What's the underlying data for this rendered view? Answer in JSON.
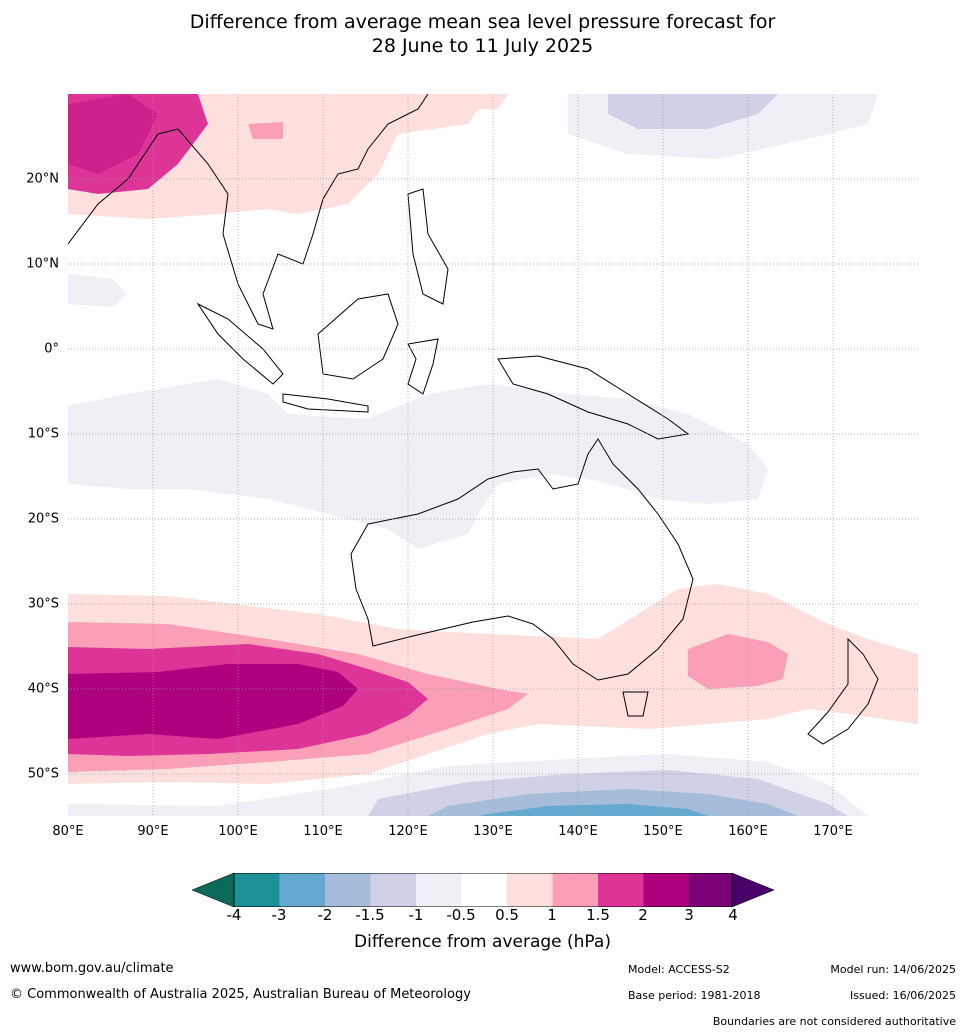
{
  "title_line1": "Difference from average mean sea level pressure forecast for",
  "title_line2": "28 June to 11 July 2025",
  "lat_labels": [
    "20°N",
    "10°N",
    "0°",
    "10°S",
    "20°S",
    "30°S",
    "40°S",
    "50°S"
  ],
  "lon_labels": [
    "80°E",
    "90°E",
    "100°E",
    "110°E",
    "120°E",
    "130°E",
    "140°E",
    "150°E",
    "160°E",
    "170°E"
  ],
  "colorbar": {
    "colors": [
      "#0b6a5a",
      "#1d9198",
      "#64a9d0",
      "#a6bcdb",
      "#d0d1e6",
      "#f1eef6",
      "#ffffff",
      "#fde0dd",
      "#fa9fb5",
      "#dd3497",
      "#ae017e",
      "#7a0177",
      "#49006a"
    ],
    "ticks": [
      "-4",
      "-3",
      "-2",
      "-1.5",
      "-1",
      "-0.5",
      "0.5",
      "1",
      "1.5",
      "2",
      "3",
      "4"
    ],
    "label": "Difference from average (hPa)"
  },
  "footer": {
    "url": "www.bom.gov.au/climate",
    "copyright": "© Commonwealth of Australia 2025, Australian Bureau of Meteorology",
    "model": "Model: ACCESS-S2",
    "base_period": "Base period: 1981-2018",
    "model_run": "Model run: 14/06/2025",
    "issued": "Issued: 16/06/2025",
    "disclaimer": "Boundaries are not considered authoritative"
  }
}
